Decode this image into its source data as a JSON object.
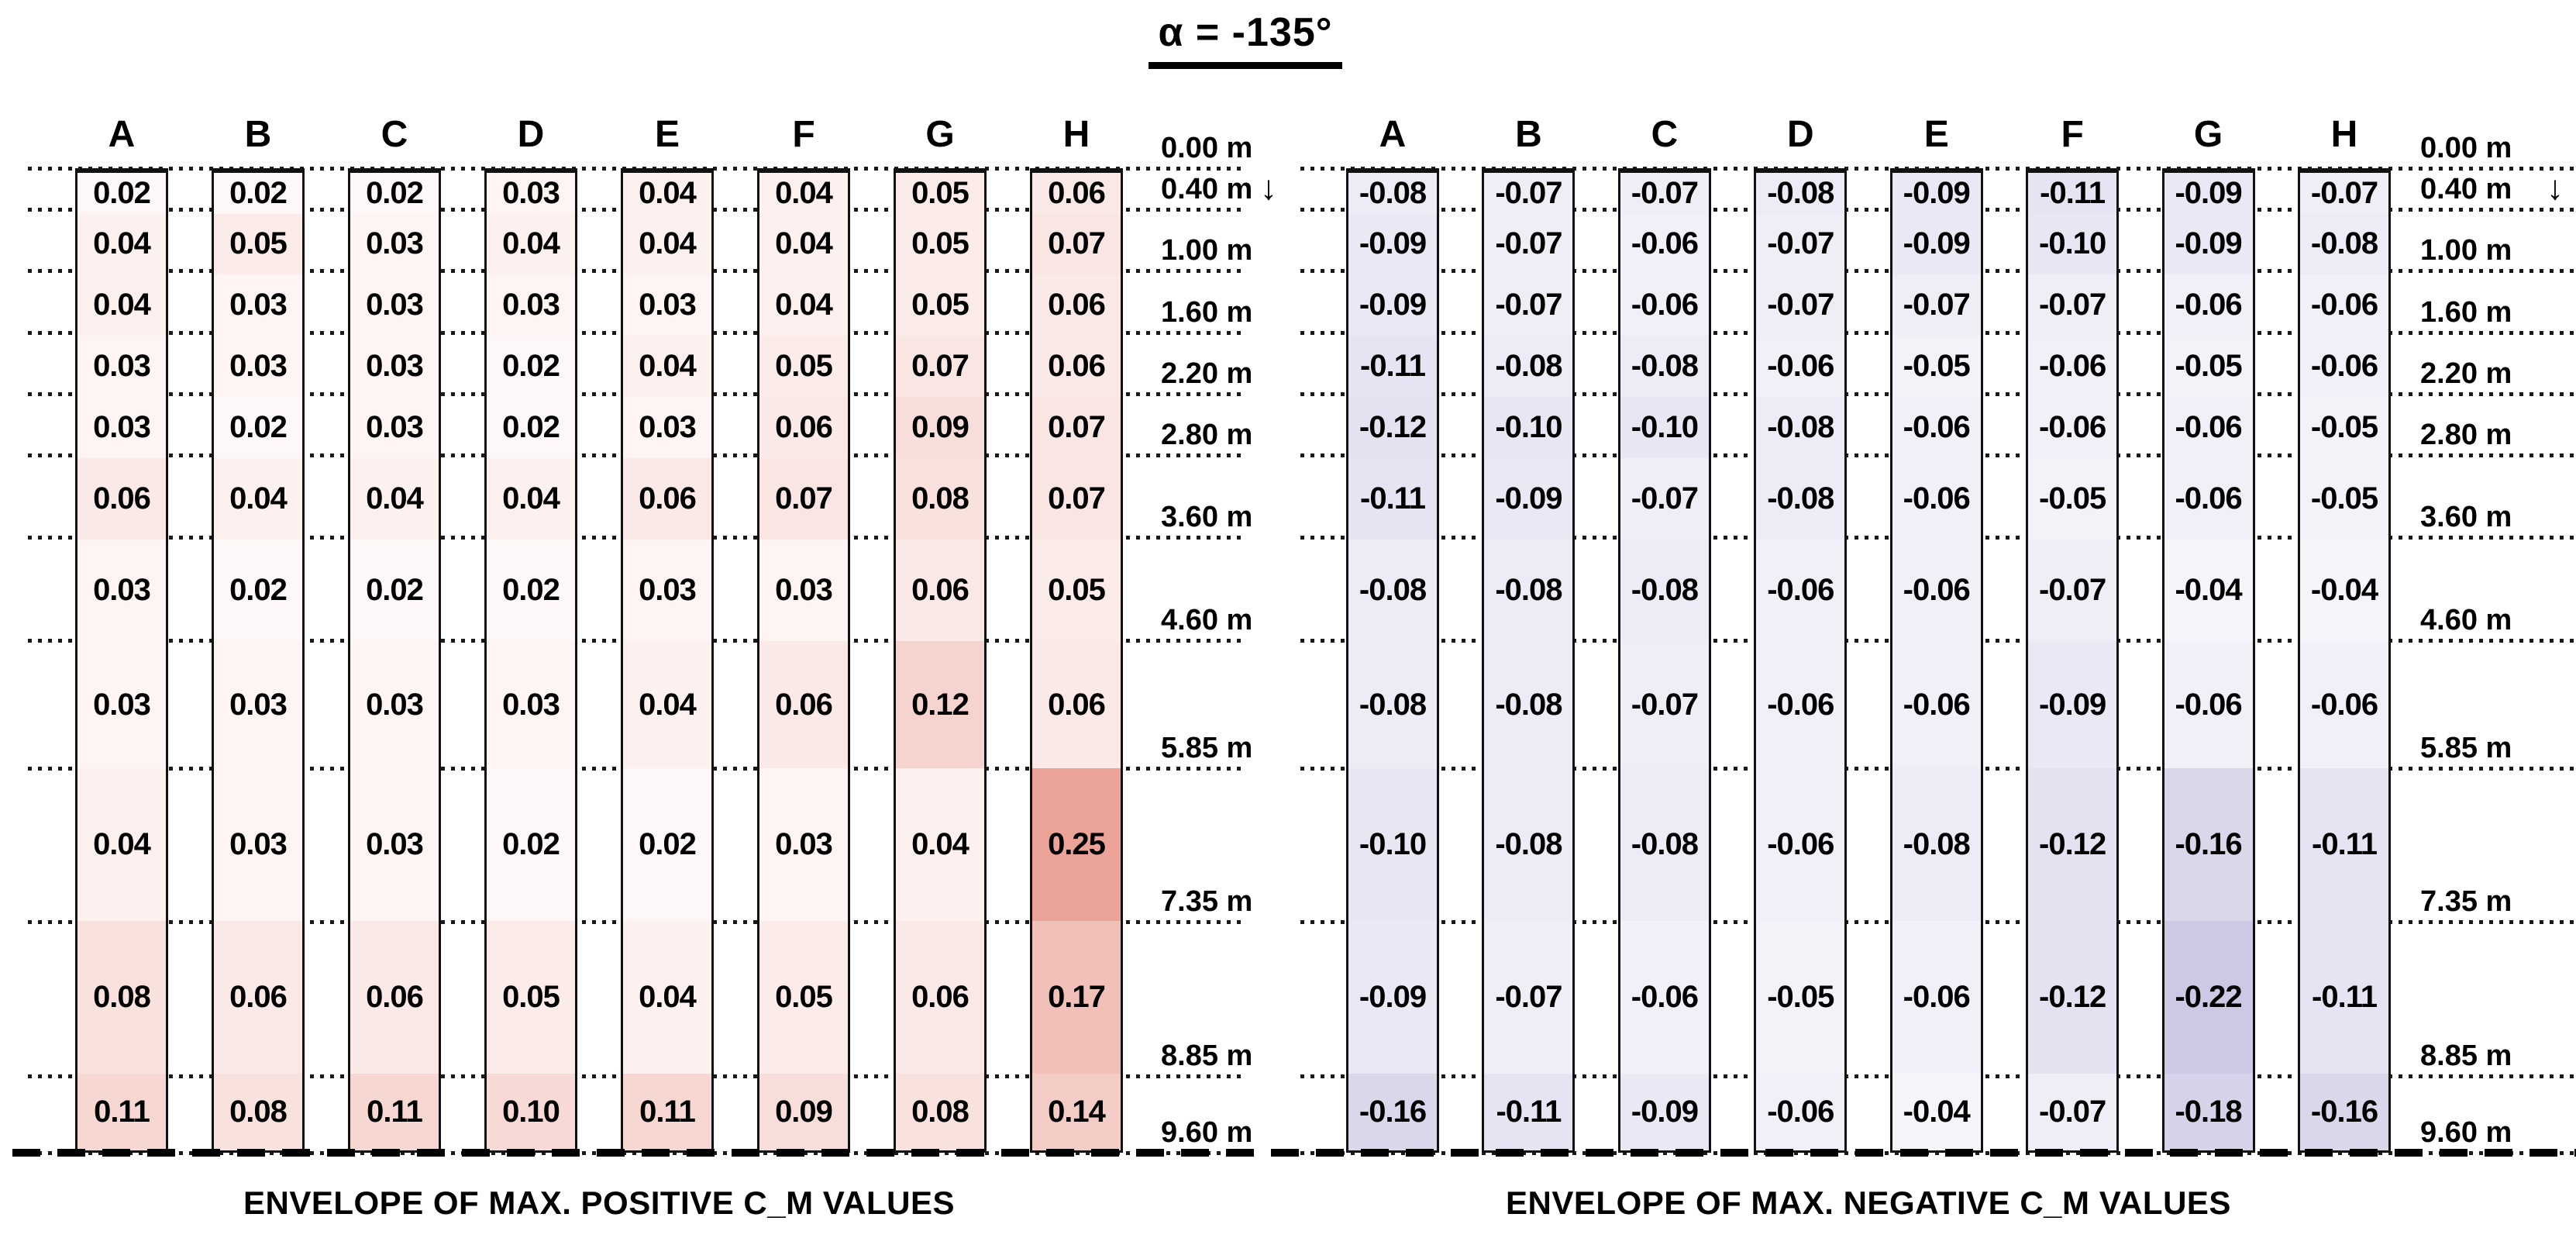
{
  "title": "α = -135°",
  "arrow_glyph": "↓",
  "depth_labels": [
    "0.00 m",
    "0.40 m",
    "1.00 m",
    "1.60 m",
    "2.20 m",
    "2.80 m",
    "3.60 m",
    "4.60 m",
    "5.85 m",
    "7.35 m",
    "8.85 m",
    "9.60 m"
  ],
  "colors": {
    "positive_base": "#D74731",
    "negative_base": "#8D82C2",
    "text": "#000000"
  },
  "panels": [
    {
      "caption": "ENVELOPE OF MAX. POSITIVE C_M VALUES",
      "columns": [
        "A",
        "B",
        "C",
        "D",
        "E",
        "F",
        "G",
        "H"
      ],
      "rows": [
        [
          "0.02",
          "0.02",
          "0.02",
          "0.03",
          "0.04",
          "0.04",
          "0.05",
          "0.06"
        ],
        [
          "0.04",
          "0.05",
          "0.03",
          "0.04",
          "0.04",
          "0.04",
          "0.05",
          "0.07"
        ],
        [
          "0.04",
          "0.03",
          "0.03",
          "0.03",
          "0.03",
          "0.04",
          "0.05",
          "0.06"
        ],
        [
          "0.03",
          "0.03",
          "0.03",
          "0.02",
          "0.04",
          "0.05",
          "0.07",
          "0.06"
        ],
        [
          "0.03",
          "0.02",
          "0.03",
          "0.02",
          "0.03",
          "0.06",
          "0.09",
          "0.07"
        ],
        [
          "0.06",
          "0.04",
          "0.04",
          "0.04",
          "0.06",
          "0.07",
          "0.08",
          "0.07"
        ],
        [
          "0.03",
          "0.02",
          "0.02",
          "0.02",
          "0.03",
          "0.03",
          "0.06",
          "0.05"
        ],
        [
          "0.03",
          "0.03",
          "0.03",
          "0.03",
          "0.04",
          "0.06",
          "0.12",
          "0.06"
        ],
        [
          "0.04",
          "0.03",
          "0.03",
          "0.02",
          "0.02",
          "0.03",
          "0.04",
          "0.25"
        ],
        [
          "0.08",
          "0.06",
          "0.06",
          "0.05",
          "0.04",
          "0.05",
          "0.06",
          "0.17"
        ],
        [
          "0.11",
          "0.08",
          "0.11",
          "0.10",
          "0.11",
          "0.09",
          "0.08",
          "0.14"
        ]
      ]
    },
    {
      "caption": "ENVELOPE OF MAX. NEGATIVE C_M VALUES",
      "columns": [
        "A",
        "B",
        "C",
        "D",
        "E",
        "F",
        "G",
        "H"
      ],
      "rows": [
        [
          "-0.08",
          "-0.07",
          "-0.07",
          "-0.08",
          "-0.09",
          "-0.11",
          "-0.09",
          "-0.07"
        ],
        [
          "-0.09",
          "-0.07",
          "-0.06",
          "-0.07",
          "-0.09",
          "-0.10",
          "-0.09",
          "-0.08"
        ],
        [
          "-0.09",
          "-0.07",
          "-0.06",
          "-0.07",
          "-0.07",
          "-0.07",
          "-0.06",
          "-0.06"
        ],
        [
          "-0.11",
          "-0.08",
          "-0.08",
          "-0.06",
          "-0.05",
          "-0.06",
          "-0.05",
          "-0.06"
        ],
        [
          "-0.12",
          "-0.10",
          "-0.10",
          "-0.08",
          "-0.06",
          "-0.06",
          "-0.06",
          "-0.05"
        ],
        [
          "-0.11",
          "-0.09",
          "-0.07",
          "-0.08",
          "-0.06",
          "-0.05",
          "-0.06",
          "-0.05"
        ],
        [
          "-0.08",
          "-0.08",
          "-0.08",
          "-0.06",
          "-0.06",
          "-0.07",
          "-0.04",
          "-0.04"
        ],
        [
          "-0.08",
          "-0.08",
          "-0.07",
          "-0.06",
          "-0.06",
          "-0.09",
          "-0.06",
          "-0.06"
        ],
        [
          "-0.10",
          "-0.08",
          "-0.08",
          "-0.06",
          "-0.08",
          "-0.12",
          "-0.16",
          "-0.11"
        ],
        [
          "-0.09",
          "-0.07",
          "-0.06",
          "-0.05",
          "-0.06",
          "-0.12",
          "-0.22",
          "-0.11"
        ],
        [
          "-0.16",
          "-0.11",
          "-0.09",
          "-0.06",
          "-0.04",
          "-0.07",
          "-0.18",
          "-0.16"
        ]
      ]
    }
  ],
  "chart_data": {
    "type": "heatmap",
    "title": "α = -135°",
    "columns": [
      "A",
      "B",
      "C",
      "D",
      "E",
      "F",
      "G",
      "H"
    ],
    "depth_edges_m": [
      0.0,
      0.4,
      1.0,
      1.6,
      2.2,
      2.8,
      3.6,
      4.6,
      5.85,
      7.35,
      8.85,
      9.6
    ],
    "series": [
      {
        "name": "ENVELOPE OF MAX. POSITIVE C_M VALUES",
        "matrix": [
          [
            0.02,
            0.02,
            0.02,
            0.03,
            0.04,
            0.04,
            0.05,
            0.06
          ],
          [
            0.04,
            0.05,
            0.03,
            0.04,
            0.04,
            0.04,
            0.05,
            0.07
          ],
          [
            0.04,
            0.03,
            0.03,
            0.03,
            0.03,
            0.04,
            0.05,
            0.06
          ],
          [
            0.03,
            0.03,
            0.03,
            0.02,
            0.04,
            0.05,
            0.07,
            0.06
          ],
          [
            0.03,
            0.02,
            0.03,
            0.02,
            0.03,
            0.06,
            0.09,
            0.07
          ],
          [
            0.06,
            0.04,
            0.04,
            0.04,
            0.06,
            0.07,
            0.08,
            0.07
          ],
          [
            0.03,
            0.02,
            0.02,
            0.02,
            0.03,
            0.03,
            0.06,
            0.05
          ],
          [
            0.03,
            0.03,
            0.03,
            0.03,
            0.04,
            0.06,
            0.12,
            0.06
          ],
          [
            0.04,
            0.03,
            0.03,
            0.02,
            0.02,
            0.03,
            0.04,
            0.25
          ],
          [
            0.08,
            0.06,
            0.06,
            0.05,
            0.04,
            0.05,
            0.06,
            0.17
          ],
          [
            0.11,
            0.08,
            0.11,
            0.1,
            0.11,
            0.09,
            0.08,
            0.14
          ]
        ]
      },
      {
        "name": "ENVELOPE OF MAX. NEGATIVE C_M VALUES",
        "matrix": [
          [
            -0.08,
            -0.07,
            -0.07,
            -0.08,
            -0.09,
            -0.11,
            -0.09,
            -0.07
          ],
          [
            -0.09,
            -0.07,
            -0.06,
            -0.07,
            -0.09,
            -0.1,
            -0.09,
            -0.08
          ],
          [
            -0.09,
            -0.07,
            -0.06,
            -0.07,
            -0.07,
            -0.07,
            -0.06,
            -0.06
          ],
          [
            -0.11,
            -0.08,
            -0.08,
            -0.06,
            -0.05,
            -0.06,
            -0.05,
            -0.06
          ],
          [
            -0.12,
            -0.1,
            -0.1,
            -0.08,
            -0.06,
            -0.06,
            -0.06,
            -0.05
          ],
          [
            -0.11,
            -0.09,
            -0.07,
            -0.08,
            -0.06,
            -0.05,
            -0.06,
            -0.05
          ],
          [
            -0.08,
            -0.08,
            -0.08,
            -0.06,
            -0.06,
            -0.07,
            -0.04,
            -0.04
          ],
          [
            -0.08,
            -0.08,
            -0.07,
            -0.06,
            -0.06,
            -0.09,
            -0.06,
            -0.06
          ],
          [
            -0.1,
            -0.08,
            -0.08,
            -0.06,
            -0.08,
            -0.12,
            -0.16,
            -0.11
          ],
          [
            -0.09,
            -0.07,
            -0.06,
            -0.05,
            -0.06,
            -0.12,
            -0.22,
            -0.11
          ],
          [
            -0.16,
            -0.11,
            -0.09,
            -0.06,
            -0.04,
            -0.07,
            -0.18,
            -0.16
          ]
        ]
      }
    ],
    "value_label_format": "two decimals",
    "color_scale": "white to red for positive, white to purple for negative, intensity proportional to |value|",
    "legend_position": "none",
    "grid": "dotted horizontal lines at depth edges"
  }
}
